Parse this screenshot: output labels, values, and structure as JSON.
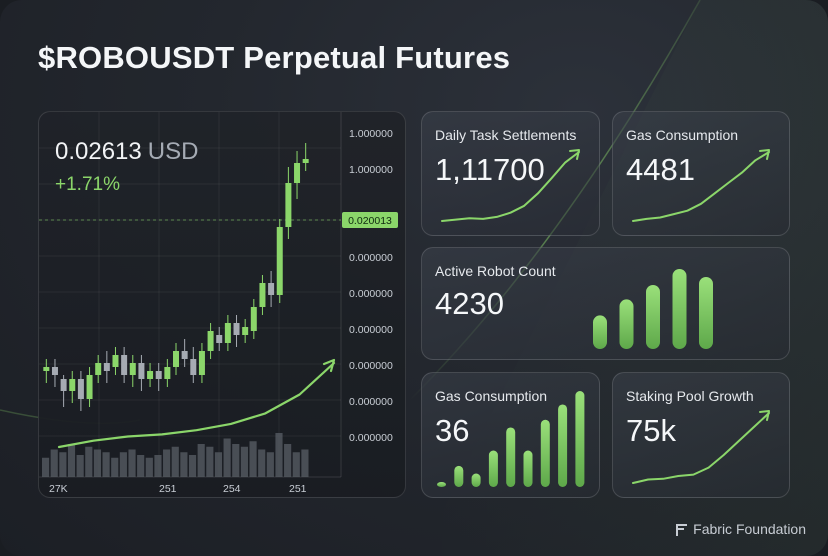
{
  "title": "$ROBOUSDT Perpetual Futures",
  "colors": {
    "accent": "#8bd66a",
    "candle_up": "#8bd66a",
    "candle_down": "#a6abb3"
  },
  "price": {
    "value": "0.02613",
    "unit": "USD",
    "change": "+1.71%"
  },
  "chart_data": {
    "type": "candlestick",
    "y_ticks": [
      "1.000000",
      "1.000000",
      "0.020013",
      "0.000000",
      "0.000000",
      "0.000000",
      "0.000000",
      "0.000000",
      "0.000000"
    ],
    "current_price_tag": "0.020013",
    "x_ticks": [
      "27K",
      "251",
      "254",
      "251"
    ],
    "candles": [
      [
        0.19,
        0.2,
        0.16,
        0.22
      ],
      [
        0.2,
        0.18,
        0.15,
        0.22
      ],
      [
        0.17,
        0.14,
        0.1,
        0.18
      ],
      [
        0.14,
        0.17,
        0.11,
        0.19
      ],
      [
        0.17,
        0.12,
        0.09,
        0.19
      ],
      [
        0.12,
        0.18,
        0.1,
        0.2
      ],
      [
        0.18,
        0.21,
        0.16,
        0.23
      ],
      [
        0.21,
        0.19,
        0.16,
        0.24
      ],
      [
        0.2,
        0.23,
        0.18,
        0.25
      ],
      [
        0.23,
        0.18,
        0.16,
        0.25
      ],
      [
        0.18,
        0.21,
        0.15,
        0.23
      ],
      [
        0.21,
        0.17,
        0.14,
        0.23
      ],
      [
        0.17,
        0.19,
        0.15,
        0.21
      ],
      [
        0.19,
        0.17,
        0.14,
        0.21
      ],
      [
        0.17,
        0.2,
        0.15,
        0.22
      ],
      [
        0.2,
        0.24,
        0.18,
        0.26
      ],
      [
        0.24,
        0.22,
        0.2,
        0.27
      ],
      [
        0.22,
        0.18,
        0.16,
        0.25
      ],
      [
        0.18,
        0.24,
        0.16,
        0.26
      ],
      [
        0.24,
        0.29,
        0.22,
        0.31
      ],
      [
        0.28,
        0.26,
        0.24,
        0.3
      ],
      [
        0.26,
        0.31,
        0.24,
        0.33
      ],
      [
        0.31,
        0.28,
        0.25,
        0.33
      ],
      [
        0.28,
        0.3,
        0.26,
        0.32
      ],
      [
        0.29,
        0.35,
        0.27,
        0.37
      ],
      [
        0.35,
        0.41,
        0.33,
        0.43
      ],
      [
        0.41,
        0.38,
        0.35,
        0.44
      ],
      [
        0.38,
        0.55,
        0.36,
        0.57
      ],
      [
        0.55,
        0.66,
        0.52,
        0.7
      ],
      [
        0.66,
        0.71,
        0.62,
        0.74
      ],
      [
        0.71,
        0.72,
        0.69,
        0.76
      ]
    ],
    "volume": [
      0.35,
      0.5,
      0.45,
      0.6,
      0.4,
      0.55,
      0.5,
      0.45,
      0.35,
      0.45,
      0.5,
      0.4,
      0.35,
      0.4,
      0.5,
      0.55,
      0.45,
      0.4,
      0.6,
      0.55,
      0.45,
      0.7,
      0.6,
      0.55,
      0.65,
      0.5,
      0.45,
      0.8,
      0.6,
      0.45,
      0.5
    ],
    "trend_line": [
      0.0,
      0.03,
      0.05,
      0.06,
      0.08,
      0.11,
      0.16,
      0.25,
      0.4
    ]
  },
  "cards": [
    {
      "id": "daily-task-settlements",
      "label": "Daily Task Settlements",
      "value": "1,11700",
      "viz": "line",
      "line": [
        0.0,
        0.02,
        0.04,
        0.03,
        0.06,
        0.12,
        0.22,
        0.4,
        0.62,
        0.85,
        1.0
      ]
    },
    {
      "id": "gas-consumption-1",
      "label": "Gas Consumption",
      "value": "4481",
      "viz": "line",
      "line": [
        0.0,
        0.03,
        0.05,
        0.1,
        0.15,
        0.25,
        0.4,
        0.55,
        0.7,
        0.88,
        1.0
      ]
    },
    {
      "id": "active-robot-count",
      "label": "Active Robot Count",
      "value": "4230",
      "viz": "bars",
      "bars": [
        0.42,
        0.62,
        0.8,
        1.0,
        0.9
      ]
    },
    {
      "id": "gas-consumption-2",
      "label": "Gas Consumption",
      "value": "36",
      "viz": "bars",
      "bars": [
        0.05,
        0.22,
        0.14,
        0.38,
        0.62,
        0.38,
        0.7,
        0.86,
        1.0
      ]
    },
    {
      "id": "staking-pool-growth",
      "label": "Staking Pool Growth",
      "value": "75k",
      "viz": "line",
      "line": [
        0.0,
        0.05,
        0.06,
        0.1,
        0.12,
        0.22,
        0.4,
        0.6,
        0.8,
        1.0
      ]
    }
  ],
  "footer": {
    "brand": "Fabric Foundation",
    "icon": "fabric-logo-icon"
  }
}
